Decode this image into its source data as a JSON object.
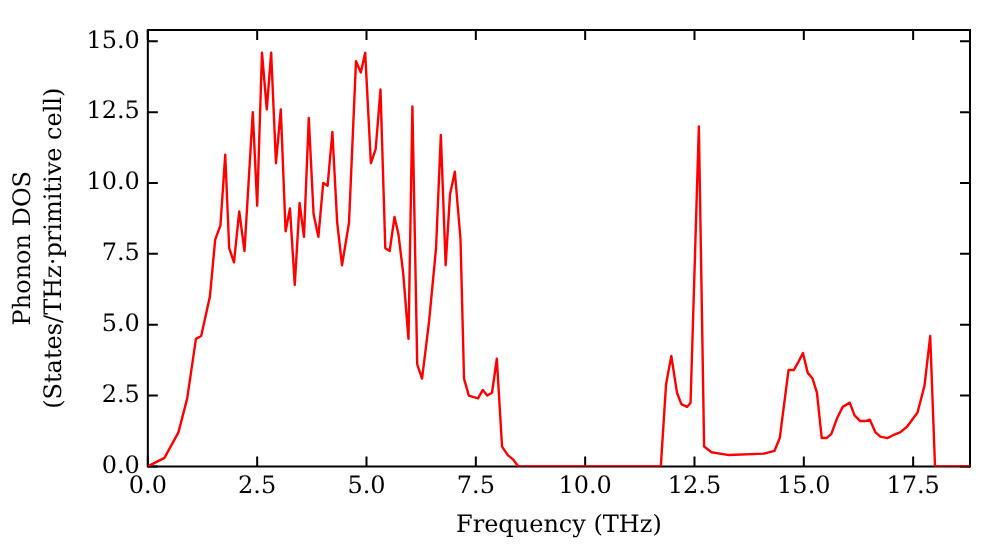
{
  "chart_data": {
    "type": "line",
    "xlabel": "Frequency (THz)",
    "ylabel": "Phonon DOS\n(States/THz·primitive cell)",
    "color": "#ff0000",
    "marker": "none",
    "x": [
      0,
      0.38,
      0.7,
      0.9,
      1.1,
      1.22,
      1.42,
      1.54,
      1.66,
      1.77,
      1.86,
      1.97,
      2.09,
      2.21,
      2.4,
      2.5,
      2.61,
      2.72,
      2.82,
      2.93,
      3.04,
      3.15,
      3.25,
      3.36,
      3.47,
      3.57,
      3.68,
      3.79,
      3.9,
      4.01,
      4.11,
      4.22,
      4.33,
      4.44,
      4.6,
      4.76,
      4.87,
      4.97,
      5.1,
      5.21,
      5.32,
      5.43,
      5.53,
      5.64,
      5.73,
      5.84,
      5.96,
      6.05,
      6.16,
      6.27,
      6.43,
      6.59,
      6.7,
      6.81,
      6.91,
      7.02,
      7.15,
      7.23,
      7.34,
      7.55,
      7.66,
      7.76,
      7.87,
      7.98,
      8.1,
      8.23,
      8.35,
      8.47,
      11.73,
      11.85,
      11.97,
      12.1,
      12.2,
      12.33,
      12.41,
      12.6,
      12.72,
      12.89,
      13.29,
      14.09,
      14.33,
      14.45,
      14.65,
      14.77,
      14.88,
      14.98,
      15.09,
      15.2,
      15.3,
      15.41,
      15.52,
      15.63,
      15.76,
      15.89,
      16.05,
      16.16,
      16.29,
      16.4,
      16.51,
      16.64,
      16.75,
      16.91,
      17.04,
      17.2,
      17.36,
      17.6,
      17.76,
      17.89,
      18.0,
      18.8
    ],
    "values": [
      0,
      0.3,
      1.2,
      2.4,
      4.5,
      4.6,
      6.0,
      8.0,
      8.5,
      11.0,
      7.7,
      7.2,
      9.0,
      7.6,
      12.5,
      9.2,
      14.6,
      12.6,
      14.6,
      10.7,
      12.6,
      8.3,
      9.1,
      6.4,
      9.3,
      8.1,
      12.3,
      8.9,
      8.1,
      10.0,
      9.9,
      11.8,
      8.6,
      7.1,
      8.6,
      14.3,
      13.9,
      14.6,
      10.7,
      11.2,
      13.3,
      7.7,
      7.6,
      8.8,
      8.2,
      6.8,
      4.5,
      12.7,
      3.6,
      3.1,
      5.1,
      7.7,
      11.7,
      7.1,
      9.6,
      10.4,
      8.0,
      3.1,
      2.5,
      2.4,
      2.7,
      2.5,
      2.6,
      3.8,
      0.7,
      0.4,
      0.25,
      0,
      0,
      2.9,
      3.9,
      2.6,
      2.2,
      2.1,
      2.25,
      12.0,
      0.7,
      0.5,
      0.4,
      0.45,
      0.55,
      1.0,
      3.4,
      3.4,
      3.7,
      4.0,
      3.3,
      3.1,
      2.6,
      1.0,
      1.0,
      1.15,
      1.7,
      2.1,
      2.25,
      1.8,
      1.6,
      1.6,
      1.65,
      1.2,
      1.05,
      1.0,
      1.1,
      1.2,
      1.4,
      1.9,
      2.85,
      4.6,
      0,
      0
    ],
    "xlim": [
      0,
      18.8
    ],
    "ylim": [
      0,
      15.4
    ],
    "xticks": [
      {
        "value": 0,
        "label": "0.0"
      },
      2.5,
      {
        "value": 5,
        "label": "5.0"
      },
      7.5,
      {
        "value": 10,
        "label": "10.0"
      },
      12.5,
      {
        "value": 15,
        "label": "15.0"
      },
      17.5
    ],
    "yticks": [
      {
        "value": 0,
        "label": "0.0"
      },
      2.5,
      {
        "value": 5,
        "label": "5.0"
      },
      7.5,
      {
        "value": 10,
        "label": "10.0"
      },
      12.5,
      {
        "value": 15,
        "label": "15.0"
      }
    ]
  }
}
